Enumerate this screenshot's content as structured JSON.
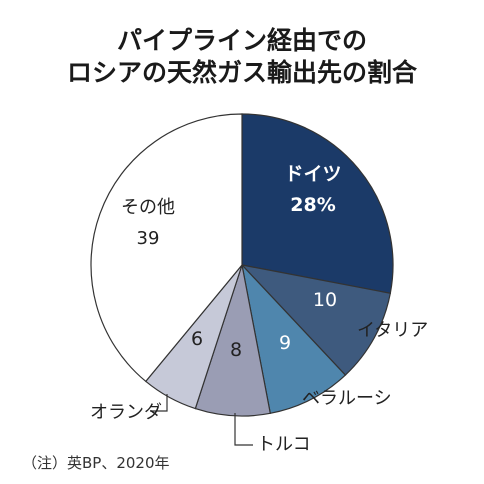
{
  "title_lines": [
    "パイプライン経由での",
    "ロシアの天然ガス輸出先の割合"
  ],
  "note": "（注）英BP、2020年",
  "chart_data": {
    "type": "pie",
    "title": "パイプライン経由でのロシアの天然ガス輸出先の割合",
    "unit": "%",
    "start": "12 o'clock, clockwise",
    "slices": [
      {
        "label": "ドイツ",
        "value": 28,
        "display": "28%",
        "color": "#1b3a68"
      },
      {
        "label": "イタリア",
        "value": 10,
        "display": "10",
        "color": "#3e5a7e"
      },
      {
        "label": "ベラルーシ",
        "value": 9,
        "display": "9",
        "color": "#4f86ad"
      },
      {
        "label": "トルコ",
        "value": 8,
        "display": "8",
        "color": "#9a9db4"
      },
      {
        "label": "オランダ",
        "value": 6,
        "display": "6",
        "color": "#c6c9d8"
      },
      {
        "label": "その他",
        "value": 39,
        "display": "39",
        "color": "#ffffff"
      }
    ]
  }
}
